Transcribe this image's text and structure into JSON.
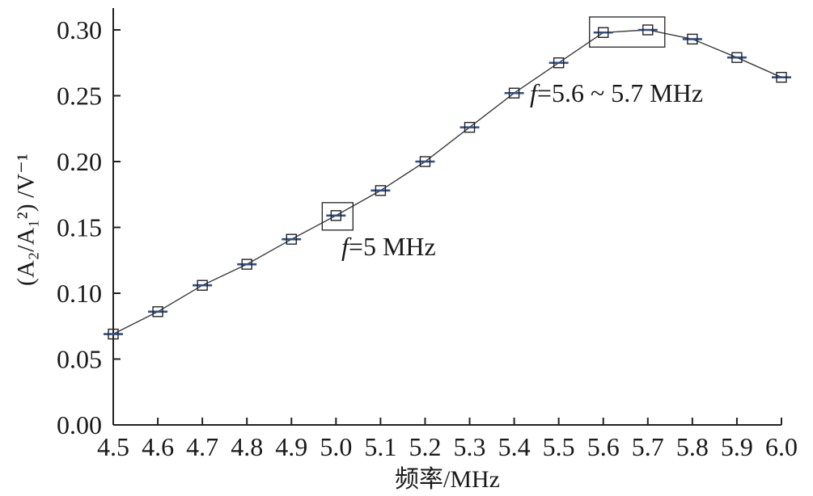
{
  "chart_data": {
    "type": "line",
    "x": [
      4.5,
      4.6,
      4.7,
      4.8,
      4.9,
      5.0,
      5.1,
      5.2,
      5.3,
      5.4,
      5.5,
      5.6,
      5.7,
      5.8,
      5.9,
      6.0
    ],
    "series": [
      {
        "values": [
          0.069,
          0.086,
          0.106,
          0.122,
          0.141,
          0.159,
          0.178,
          0.2,
          0.226,
          0.252,
          0.275,
          0.298,
          0.3,
          0.293,
          0.279,
          0.264
        ],
        "marker": "square",
        "color": "#3a3a3a",
        "marker_bar_color": "#2e4f8c"
      }
    ],
    "xlabel": "频率/MHz",
    "ylabel": "(A₂/A₁²) /V⁻¹",
    "xlim": [
      4.5,
      6.0
    ],
    "ylim": [
      0,
      0.3
    ],
    "xticks": [
      "4.5",
      "4.6",
      "4.7",
      "4.8",
      "4.9",
      "5.0",
      "5.1",
      "5.2",
      "5.3",
      "5.4",
      "5.5",
      "5.6",
      "5.7",
      "5.8",
      "5.9",
      "6.0"
    ],
    "yticks": [
      "0.00",
      "0.05",
      "0.10",
      "0.15",
      "0.20",
      "0.25",
      "0.30"
    ],
    "grid": false,
    "annotations": [
      {
        "text": "f=5 MHz",
        "x": [
          5.0
        ]
      },
      {
        "text": "f=5.6 ~ 5.7 MHz",
        "x": [
          5.6,
          5.7
        ]
      }
    ]
  }
}
